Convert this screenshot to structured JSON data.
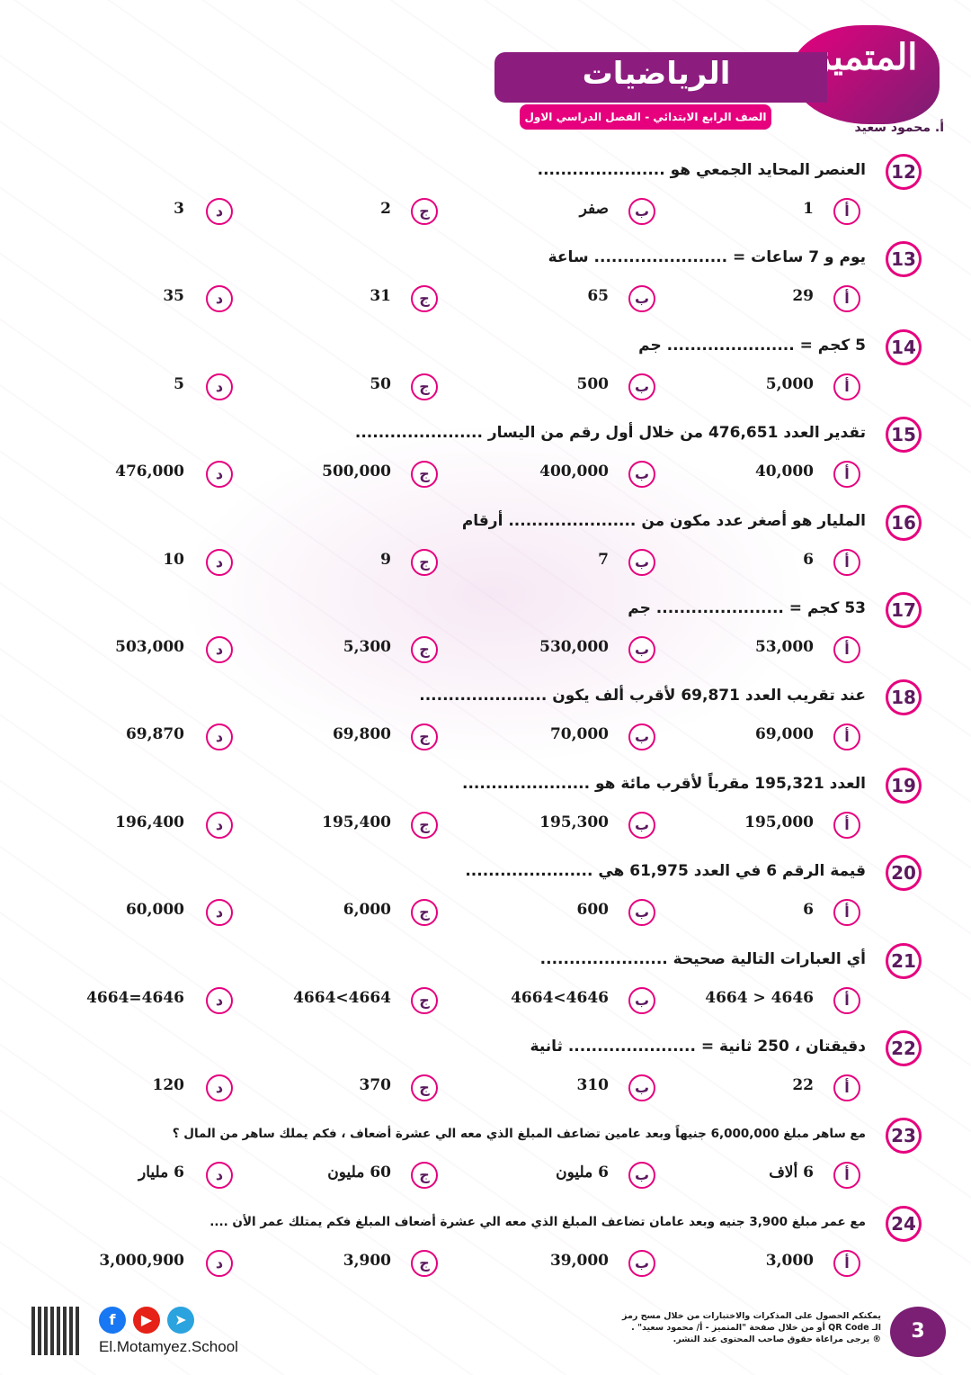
{
  "header": {
    "logo_text": "المتميز",
    "title": "الرياضيات",
    "subtitle": "الصف الرابع الابتدائي - الفصل الدراسي الاول",
    "author": "أ. محمود سعيد"
  },
  "option_letters": [
    "أ",
    "ب",
    "ج",
    "د"
  ],
  "questions": [
    {
      "num": "12",
      "text": "العنصر المحايد الجمعي هو ......................",
      "options": [
        "1",
        "صفر",
        "2",
        "3"
      ]
    },
    {
      "num": "13",
      "text": "يوم و 7 ساعات = ....................... ساعة",
      "options": [
        "29",
        "65",
        "31",
        "35"
      ]
    },
    {
      "num": "14",
      "text": "5 كجم = ...................... جم",
      "options": [
        "5,000",
        "500",
        "50",
        "5"
      ]
    },
    {
      "num": "15",
      "text": "تقدير العدد 476,651 من خلال أول رقم من اليسار ......................",
      "options": [
        "40,000",
        "400,000",
        "500,000",
        "476,000"
      ]
    },
    {
      "num": "16",
      "text": "المليار هو أصغر عدد مكون من ...................... أرقام",
      "options": [
        "6",
        "7",
        "9",
        "10"
      ]
    },
    {
      "num": "17",
      "text": "53 كجم = ...................... جم",
      "options": [
        "53,000",
        "530,000",
        "5,300",
        "503,000"
      ]
    },
    {
      "num": "18",
      "text": "عند تقريب العدد 69,871 لأقرب ألف يكون ......................",
      "options": [
        "69,000",
        "70,000",
        "69,800",
        "69,870"
      ]
    },
    {
      "num": "19",
      "text": "العدد 195,321 مقرباً لأقرب مائة هو ......................",
      "options": [
        "195,000",
        "195,300",
        "195,400",
        "196,400"
      ]
    },
    {
      "num": "20",
      "text": "قيمة الرقم 6 في العدد 61,975 هي ......................",
      "options": [
        "6",
        "600",
        "6,000",
        "60,000"
      ]
    },
    {
      "num": "21",
      "text": "أي العبارات التالية صحيحة ......................",
      "options": [
        "4646 < 4664",
        "4646>4664",
        "4664>4664",
        "4646=4664"
      ]
    },
    {
      "num": "22",
      "text": "دقيقتان ، 250 ثانية = ...................... ثانية",
      "options": [
        "22",
        "310",
        "370",
        "120"
      ]
    },
    {
      "num": "23",
      "text": "مع ساهر مبلغ 6,000,000 جنيهاً وبعد عامين تضاعف المبلغ الذي معه الي عشرة أضعاف ، فكم يملك ساهر من المال ؟",
      "options": [
        "6 ألاف",
        "6 مليون",
        "60 مليون",
        "6 مليار"
      ]
    },
    {
      "num": "24",
      "text": "مع عمر مبلغ 3,900 جنيه وبعد عامان تضاعف المبلغ الذي معه الي عشرة أضعاف المبلغ فكم يمتلك عمر  الأن ....",
      "options": [
        "3,000",
        "39,000",
        "3,900",
        "3,000,900"
      ]
    }
  ],
  "footer": {
    "note_lines": [
      "يمكنكم الحصول على المذكرات والاختبارات من خلال مسح رمز",
      "الـ QR Code أو من خلال صفحة \"المتميز - أ/ محمود سعيد\" .",
      "® يرجى مراعاة حقوق صاحب المحتوى عند النشر."
    ],
    "page_number": "3",
    "website": "El.Motamyez.School",
    "social_icons": [
      "facebook-icon",
      "youtube-icon",
      "telegram-icon"
    ],
    "colors": {
      "pink": "#e6007e",
      "purple": "#7a1f73"
    }
  }
}
